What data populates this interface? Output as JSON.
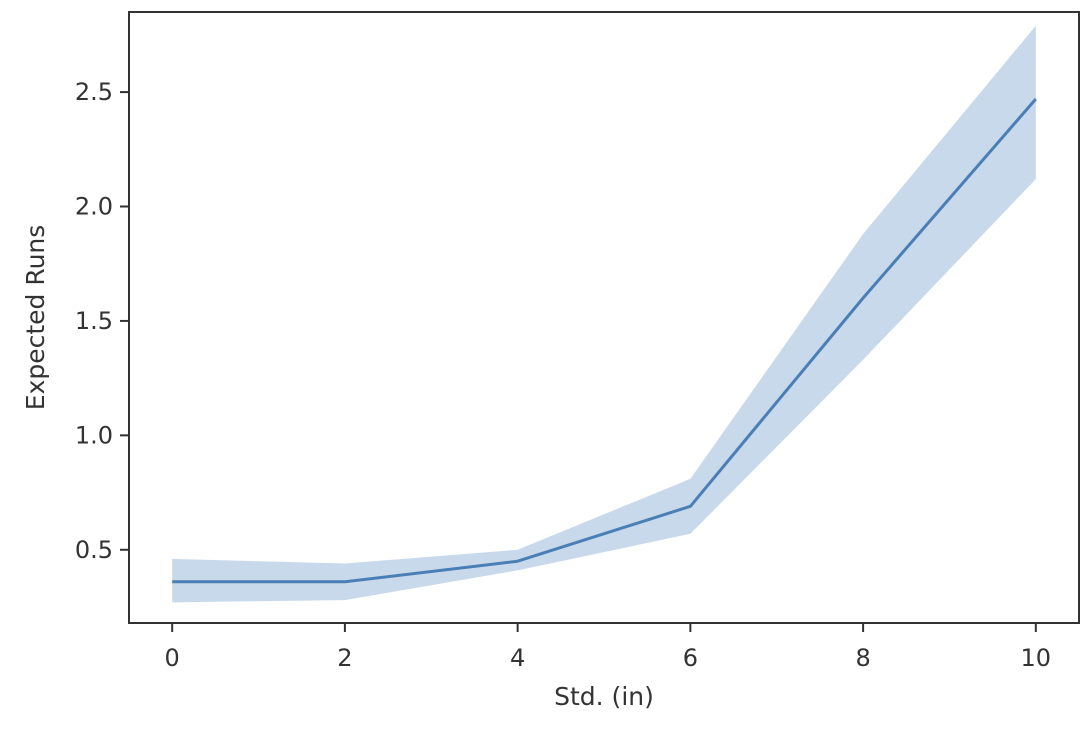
{
  "chart_data": {
    "type": "line",
    "title": "",
    "xlabel": "Std. (in)",
    "ylabel": "Expected Runs",
    "xlim": [
      -0.5,
      10.5
    ],
    "ylim": [
      0.18,
      2.85
    ],
    "x_ticks": [
      0,
      2,
      4,
      6,
      8,
      10
    ],
    "y_ticks": [
      0.5,
      1.0,
      1.5,
      2.0,
      2.5
    ],
    "x_tick_labels": [
      "0",
      "2",
      "4",
      "6",
      "8",
      "10"
    ],
    "y_tick_labels": [
      "0.5",
      "1.0",
      "1.5",
      "2.0",
      "2.5"
    ],
    "grid": false,
    "series": [
      {
        "x": [
          0,
          2,
          4,
          6,
          8,
          10
        ],
        "y": [
          0.36,
          0.36,
          0.45,
          0.69,
          1.6,
          2.47
        ],
        "ci_lower": [
          0.27,
          0.28,
          0.41,
          0.57,
          1.33,
          2.12
        ],
        "ci_upper": [
          0.46,
          0.44,
          0.5,
          0.81,
          1.88,
          2.79
        ],
        "color": "#4a7fb5",
        "band_color": "#c9d9ec"
      }
    ]
  }
}
